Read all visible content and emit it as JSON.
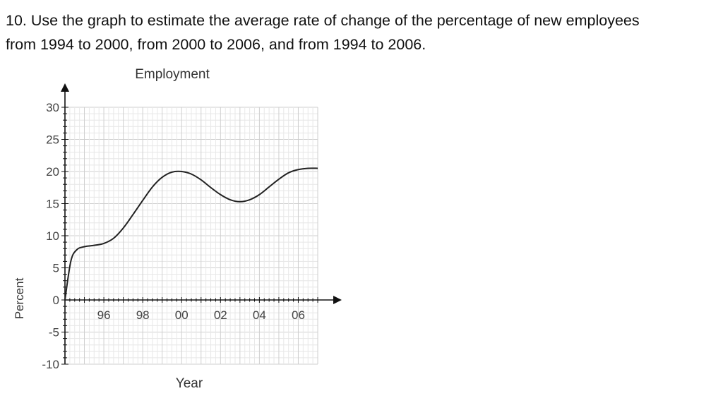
{
  "question": {
    "line1": "10. Use the graph to estimate the average rate of change of the percentage of new employees",
    "line2": "from 1994 to 2000, from 2000 to 2006, and from 1994 to 2006."
  },
  "chart_data": {
    "type": "line",
    "title": "Employment",
    "xlabel": "Year",
    "ylabel": "Percent",
    "x_tick_labels": [
      "96",
      "98",
      "00",
      "02",
      "04",
      "06"
    ],
    "x_ticks": [
      1996,
      1998,
      2000,
      2002,
      2004,
      2006
    ],
    "y_tick_labels": [
      "30",
      "25",
      "20",
      "15",
      "10",
      "5",
      "0",
      "-5",
      "-10"
    ],
    "y_ticks": [
      30,
      25,
      20,
      15,
      10,
      5,
      0,
      -5,
      -10
    ],
    "xlim": [
      1994,
      2007
    ],
    "ylim": [
      -10,
      30
    ],
    "grid": true,
    "series": [
      {
        "x": [
          1994,
          1994.3,
          1994.6,
          1995,
          1995.5,
          1996,
          1996.5,
          1997,
          1997.5,
          1998,
          1998.5,
          1999,
          1999.5,
          2000,
          2000.5,
          2001,
          2001.5,
          2002,
          2002.5,
          2003,
          2003.5,
          2004,
          2004.5,
          2005,
          2005.5,
          2006,
          2006.5,
          2007
        ],
        "y": [
          0,
          6,
          7.8,
          8.3,
          8.5,
          8.8,
          9.6,
          11.2,
          13.3,
          15.5,
          17.6,
          19.1,
          19.9,
          20.0,
          19.6,
          18.7,
          17.5,
          16.4,
          15.6,
          15.3,
          15.6,
          16.4,
          17.6,
          18.8,
          19.8,
          20.3,
          20.5,
          20.5
        ]
      }
    ]
  }
}
